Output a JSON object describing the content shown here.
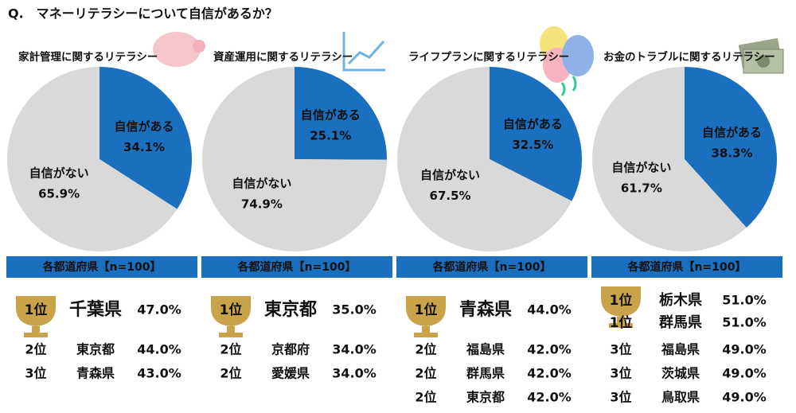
{
  "title": "Q.　マネーリテラシーについて自信があるか？",
  "chart_data": [
    {
      "type": "pie",
      "title": "家計管理に関するリテラシー",
      "categories": [
        "自信がある",
        "自信がない"
      ],
      "values": [
        34.1,
        65.9
      ],
      "value_labels": [
        "34.1%",
        "65.9%"
      ],
      "colors": [
        "#1a6fbe",
        "#d9d9d9"
      ]
    },
    {
      "type": "pie",
      "title": "資産運用に関するリテラシー",
      "categories": [
        "自信がある",
        "自信がない"
      ],
      "values": [
        25.1,
        74.9
      ],
      "value_labels": [
        "25.1%",
        "74.9%"
      ],
      "colors": [
        "#1a6fbe",
        "#d9d9d9"
      ]
    },
    {
      "type": "pie",
      "title": "ライフプランに関するリテラシー",
      "categories": [
        "自信がある",
        "自信がない"
      ],
      "values": [
        32.5,
        67.5
      ],
      "value_labels": [
        "32.5%",
        "67.5%"
      ],
      "colors": [
        "#1a6fbe",
        "#d9d9d9"
      ]
    },
    {
      "type": "pie",
      "title": "お金のトラブルに関するリテラシー",
      "categories": [
        "自信がある",
        "自信がない"
      ],
      "values": [
        38.3,
        61.7
      ],
      "value_labels": [
        "38.3%",
        "61.7%"
      ],
      "colors": [
        "#1a6fbe",
        "#d9d9d9"
      ]
    }
  ],
  "panels": [
    {
      "header": "各都道府県【n=100】",
      "ranks": [
        {
          "rank": "1位",
          "pref": "千葉県",
          "value": "47.0%"
        },
        {
          "rank": "2位",
          "pref": "東京都",
          "value": "44.0%"
        },
        {
          "rank": "3位",
          "pref": "青森県",
          "value": "43.0%"
        }
      ]
    },
    {
      "header": "各都道府県【n=100】",
      "ranks": [
        {
          "rank": "1位",
          "pref": "東京都",
          "value": "35.0%"
        },
        {
          "rank": "2位",
          "pref": "京都府",
          "value": "34.0%"
        },
        {
          "rank": "2位",
          "pref": "愛媛県",
          "value": "34.0%"
        }
      ]
    },
    {
      "header": "各都道府県【n=100】",
      "ranks": [
        {
          "rank": "1位",
          "pref": "青森県",
          "value": "44.0%"
        },
        {
          "rank": "2位",
          "pref": "福島県",
          "value": "42.0%"
        },
        {
          "rank": "2位",
          "pref": "群馬県",
          "value": "42.0%"
        },
        {
          "rank": "2位",
          "pref": "東京都",
          "value": "42.0%"
        }
      ]
    },
    {
      "header": "各都道府県【n=100】",
      "ranks": [
        {
          "rank": "1位",
          "pref": "栃木県",
          "value": "51.0%"
        },
        {
          "rank": "1位",
          "pref": "群馬県",
          "value": "51.0%"
        },
        {
          "rank": "3位",
          "pref": "福島県",
          "value": "49.0%"
        },
        {
          "rank": "3位",
          "pref": "茨城県",
          "value": "49.0%"
        },
        {
          "rank": "3位",
          "pref": "鳥取県",
          "value": "49.0%"
        }
      ]
    }
  ]
}
